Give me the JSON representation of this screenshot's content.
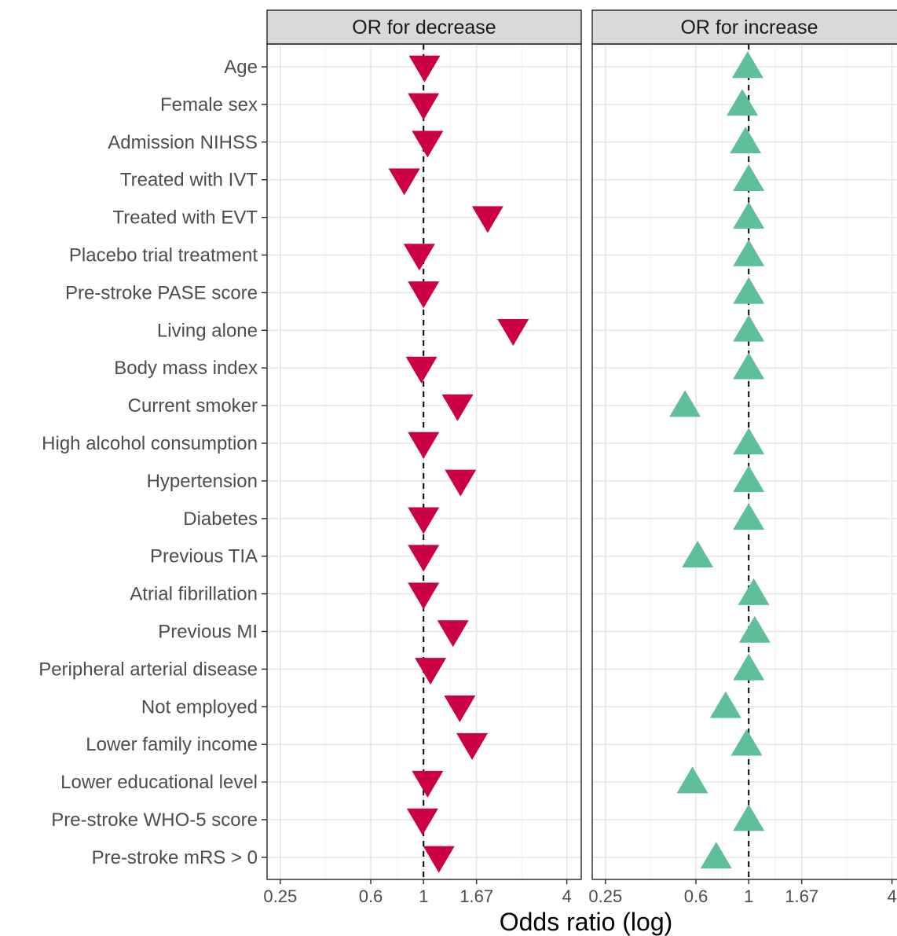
{
  "chart_data": {
    "type": "scatter",
    "title": "",
    "xlabel": "Odds ratio (log)",
    "ylabel": "",
    "x_scale": "log",
    "xlim": [
      0.22,
      4.6
    ],
    "x_ticks": [
      0.25,
      0.6,
      1,
      1.67,
      4
    ],
    "x_tick_labels": [
      "0.25",
      "0.6",
      "1",
      "1.67",
      "4"
    ],
    "reference_line": 1,
    "grid": true,
    "categories": [
      "Age",
      "Female sex",
      "Admission NIHSS",
      "Treated with IVT",
      "Treated with EVT",
      "Placebo trial treatment",
      "Pre-stroke PASE score",
      "Living alone",
      "Body mass index",
      "Current smoker",
      "High alcohol consumption",
      "Hypertension",
      "Diabetes",
      "Previous TIA",
      "Atrial fibrillation",
      "Previous MI",
      "Peripheral arterial disease",
      "Not employed",
      "Lower family income",
      "Lower educational level",
      "Pre-stroke WHO-5 score",
      "Pre-stroke mRS > 0"
    ],
    "panels": [
      {
        "name": "OR for decrease",
        "marker": "triangle-down",
        "color": "#cc0044",
        "values": [
          1.01,
          1.0,
          1.04,
          0.83,
          1.86,
          0.96,
          1.0,
          2.38,
          0.98,
          1.39,
          1.0,
          1.43,
          1.0,
          1.0,
          1.0,
          1.33,
          1.07,
          1.42,
          1.6,
          1.04,
          0.99,
          1.16
        ]
      },
      {
        "name": "OR for increase",
        "marker": "triangle-up",
        "color": "#5fbf9b",
        "values": [
          0.99,
          0.94,
          0.97,
          1.0,
          1.0,
          1.0,
          1.0,
          1.0,
          1.0,
          0.54,
          1.0,
          1.0,
          1.0,
          0.61,
          1.05,
          1.06,
          1.0,
          0.8,
          0.98,
          0.58,
          1.0,
          0.73
        ]
      }
    ]
  }
}
